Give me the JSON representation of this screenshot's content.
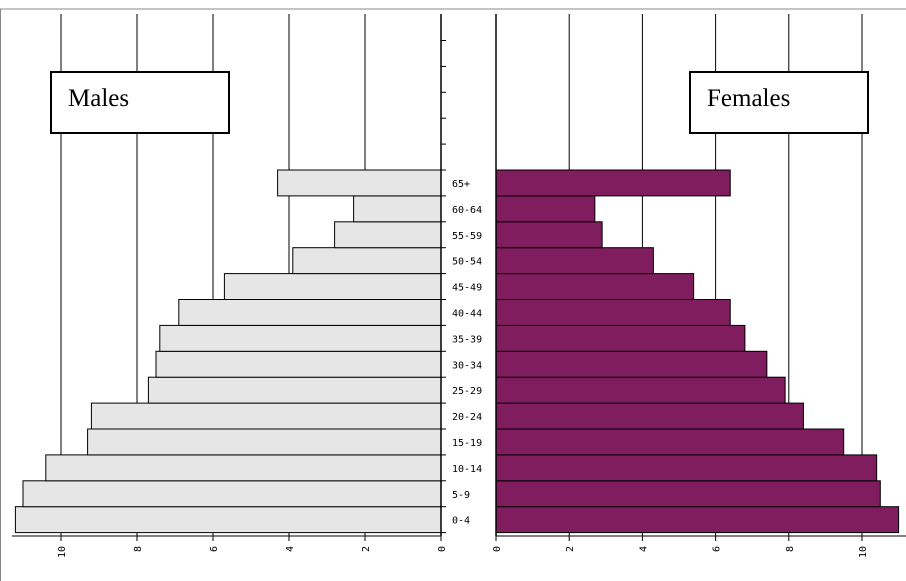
{
  "chart_data": {
    "type": "bar",
    "orientation": "horizontal",
    "subtype": "population-pyramid",
    "categories": [
      "0-4",
      "5-9",
      "10-14",
      "15-19",
      "20-24",
      "25-29",
      "30-34",
      "35-39",
      "40-44",
      "45-49",
      "50-54",
      "55-59",
      "60-64",
      "65+"
    ],
    "series": [
      {
        "name": "Males",
        "color": "#e6e6e6",
        "values": [
          11.2,
          11.0,
          10.4,
          9.3,
          9.2,
          7.7,
          7.5,
          7.4,
          6.9,
          5.7,
          3.9,
          2.8,
          2.3,
          4.3
        ]
      },
      {
        "name": "Females",
        "color": "#7f1d5e",
        "values": [
          11.0,
          10.5,
          10.4,
          9.5,
          8.4,
          7.9,
          7.4,
          6.8,
          6.4,
          5.4,
          4.3,
          2.9,
          2.7,
          6.4
        ]
      }
    ],
    "male_axis": {
      "ticks": [
        "10",
        "8",
        "6",
        "4",
        "2",
        "0"
      ],
      "xlim": [
        0,
        11.3
      ]
    },
    "female_axis": {
      "ticks": [
        "0",
        "2",
        "4",
        "6",
        "8",
        "10"
      ],
      "xlim": [
        0,
        11
      ]
    },
    "grid": true,
    "legend_labels": [
      "Males",
      "Females"
    ]
  }
}
